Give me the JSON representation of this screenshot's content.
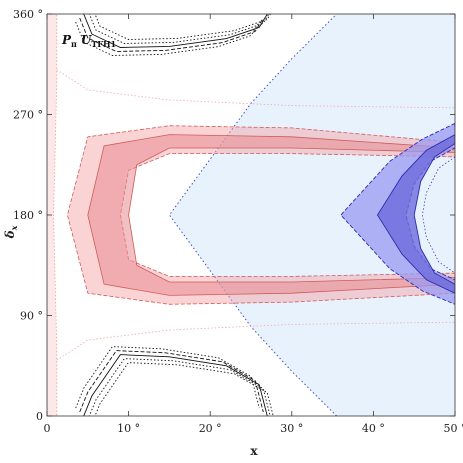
{
  "chart_data": {
    "type": "contour",
    "xlabel": "x",
    "ylabel": "δ",
    "ylabel_sub": "x",
    "xlim": [
      0,
      50
    ],
    "ylim": [
      0,
      360
    ],
    "x_ticks": [
      0,
      10,
      20,
      30,
      40,
      50
    ],
    "x_tick_labels": [
      "0",
      "10 °",
      "20 °",
      "30 °",
      "40 °",
      "50 °"
    ],
    "y_ticks": [
      0,
      90,
      180,
      270,
      360
    ],
    "y_tick_labels": [
      "0",
      "90 °",
      "180 °",
      "270 °",
      "360 °"
    ],
    "grid": false,
    "annotation": {
      "main": "P",
      "sub1": "π",
      "main2": "U",
      "sub2": "TFH1"
    },
    "colors": {
      "red_band": "#f4a0a0",
      "red_inner": "#e88a92",
      "red_outline": "#d05a5a",
      "pink_region": "#fde8e8",
      "blue_region": "#e8f2fd",
      "blue_band": "#9a9af0",
      "blue_inner": "#6c6cdc",
      "blue_outline": "#2a2ab0"
    },
    "regions": {
      "blue_dotted_boundary": [
        [
          35.5,
          0
        ],
        [
          30,
          40
        ],
        [
          25,
          80
        ],
        [
          18,
          150
        ],
        [
          15,
          180
        ],
        [
          18,
          210
        ],
        [
          25,
          280
        ],
        [
          30,
          320
        ],
        [
          35.5,
          360
        ]
      ],
      "pink_left_strip": [
        [
          0,
          0
        ],
        [
          1.2,
          0
        ],
        [
          1.2,
          60
        ],
        [
          0.8,
          180
        ],
        [
          1.2,
          300
        ],
        [
          1.2,
          360
        ],
        [
          0,
          360
        ]
      ],
      "red_band_outer": [
        [
          50,
          245
        ],
        [
          30,
          258
        ],
        [
          15,
          260
        ],
        [
          5,
          250
        ],
        [
          2.5,
          180
        ],
        [
          5,
          110
        ],
        [
          15,
          100
        ],
        [
          30,
          102
        ],
        [
          50,
          110
        ]
      ],
      "red_band_inner": [
        [
          50,
          232
        ],
        [
          30,
          235
        ],
        [
          15,
          235
        ],
        [
          10,
          220
        ],
        [
          9,
          180
        ],
        [
          10,
          140
        ],
        [
          15,
          125
        ],
        [
          30,
          125
        ],
        [
          50,
          128
        ]
      ],
      "blue_band_outer": [
        [
          50,
          262
        ],
        [
          46,
          248
        ],
        [
          42,
          228
        ],
        [
          36,
          180
        ],
        [
          42,
          132
        ],
        [
          46,
          112
        ],
        [
          50,
          100
        ]
      ],
      "blue_band_inner": [
        [
          50,
          240
        ],
        [
          47,
          228
        ],
        [
          45,
          208
        ],
        [
          44,
          180
        ],
        [
          45,
          152
        ],
        [
          47,
          132
        ],
        [
          50,
          122
        ]
      ],
      "black_contour_top": [
        [
          4.5,
          360
        ],
        [
          5.5,
          342
        ],
        [
          9,
          330
        ],
        [
          15,
          331
        ],
        [
          22,
          338
        ],
        [
          26,
          348
        ],
        [
          27,
          360
        ]
      ],
      "black_contour_bottom": [
        [
          4.5,
          0
        ],
        [
          5.5,
          18
        ],
        [
          9,
          55
        ],
        [
          15,
          53
        ],
        [
          22,
          45
        ],
        [
          26,
          28
        ],
        [
          27,
          0
        ]
      ]
    }
  }
}
